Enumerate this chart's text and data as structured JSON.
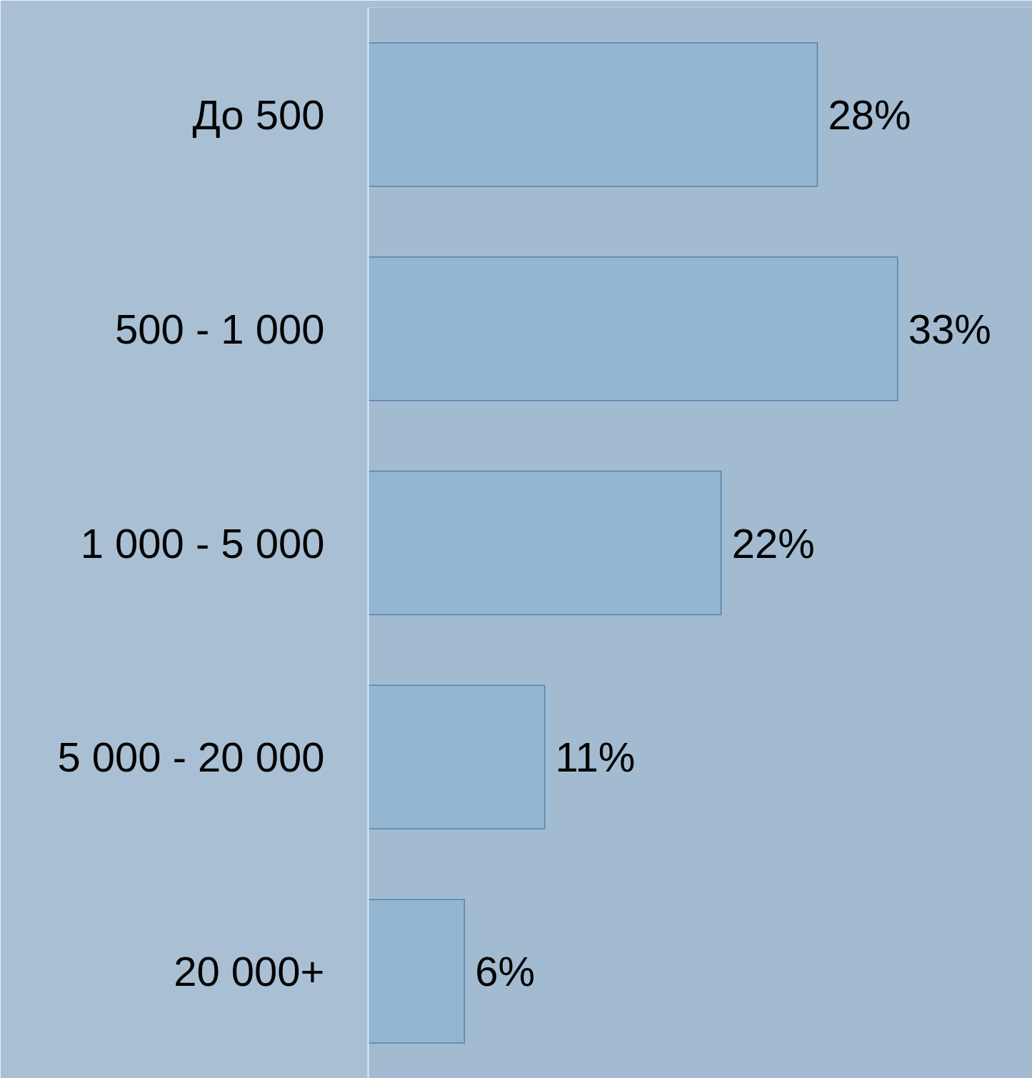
{
  "chart_data": {
    "type": "bar",
    "orientation": "horizontal",
    "categories": [
      "До 500",
      "500 - 1 000",
      "1 000 - 5 000",
      "5 000 - 20 000",
      "20 000+"
    ],
    "values": [
      28,
      33,
      22,
      11,
      6
    ],
    "value_labels": [
      "28%",
      "33%",
      "22%",
      "11%",
      "6%"
    ],
    "color": "#93b6d2",
    "xlim": [
      0,
      41.4
    ],
    "tick_labels": "y"
  }
}
